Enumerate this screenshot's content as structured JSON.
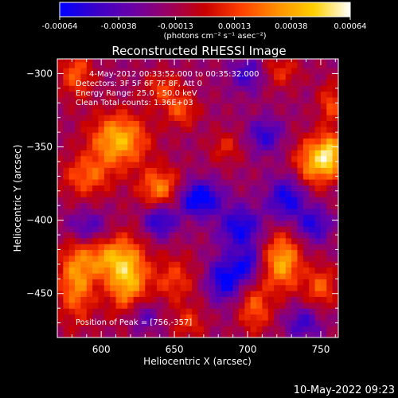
{
  "colorbar": {
    "ticks": [
      "-0.00064",
      "-0.00038",
      "-0.00013",
      "0.00013",
      "0.00038",
      "0.00064"
    ],
    "unit_label": "(photons cm⁻² s⁻¹ asec⁻²)",
    "range": [
      -0.00064,
      0.00064
    ],
    "colormap": [
      "#0000ff",
      "#3a00c8",
      "#6a00a8",
      "#9a0060",
      "#c80000",
      "#ff4000",
      "#ff9000",
      "#ffd000",
      "#ffffff"
    ]
  },
  "chart_data": {
    "type": "heatmap",
    "title": "Reconstructed RHESSI Image",
    "xlabel": "Heliocentric X (arcsec)",
    "ylabel": "Heliocentric Y (arcsec)",
    "xlim": [
      570,
      762
    ],
    "ylim": [
      -480,
      -290
    ],
    "xticks": [
      600,
      650,
      700,
      750
    ],
    "yticks": [
      -300,
      -350,
      -400,
      -450
    ],
    "annotations": [
      "4-May-2012 00:33:52.000 to 00:35:32.000",
      "Detectors: 3F 5F 6F 7F 8F, Att 0",
      "Energy Range: 25.0 - 50.0 keV",
      "Clean     Total counts: 1.36E+03"
    ],
    "peak_label": "Position of Peak = [756,-357]",
    "peak": [
      756,
      -357
    ],
    "hotspots": [
      {
        "x": 612,
        "y": -345,
        "v": 0.9,
        "sx": 14,
        "sy": 13
      },
      {
        "x": 590,
        "y": -370,
        "v": 0.55,
        "sx": 12,
        "sy": 10
      },
      {
        "x": 640,
        "y": -378,
        "v": 0.7,
        "sx": 10,
        "sy": 10
      },
      {
        "x": 583,
        "y": -300,
        "v": 0.55,
        "sx": 8,
        "sy": 12
      },
      {
        "x": 642,
        "y": -310,
        "v": 0.45,
        "sx": 9,
        "sy": 8
      },
      {
        "x": 655,
        "y": -325,
        "v": 0.5,
        "sx": 8,
        "sy": 8
      },
      {
        "x": 723,
        "y": -298,
        "v": 0.4,
        "sx": 9,
        "sy": 8
      },
      {
        "x": 745,
        "y": -360,
        "v": 0.8,
        "sx": 9,
        "sy": 12
      },
      {
        "x": 757,
        "y": -355,
        "v": 0.85,
        "sx": 6,
        "sy": 10
      },
      {
        "x": 757,
        "y": -320,
        "v": 0.5,
        "sx": 6,
        "sy": 10
      },
      {
        "x": 618,
        "y": -438,
        "v": 0.95,
        "sx": 10,
        "sy": 18
      },
      {
        "x": 583,
        "y": -440,
        "v": 0.75,
        "sx": 9,
        "sy": 20
      },
      {
        "x": 602,
        "y": -425,
        "v": 0.55,
        "sx": 10,
        "sy": 10
      },
      {
        "x": 650,
        "y": -440,
        "v": 0.45,
        "sx": 10,
        "sy": 12
      },
      {
        "x": 705,
        "y": -460,
        "v": 0.55,
        "sx": 8,
        "sy": 12
      },
      {
        "x": 724,
        "y": -428,
        "v": 0.85,
        "sx": 9,
        "sy": 14
      },
      {
        "x": 750,
        "y": -445,
        "v": 0.55,
        "sx": 8,
        "sy": 10
      },
      {
        "x": 685,
        "y": -350,
        "v": 0.35,
        "sx": 8,
        "sy": 8
      },
      {
        "x": 660,
        "y": -470,
        "v": 0.4,
        "sx": 8,
        "sy": 8
      }
    ],
    "coldspots": [
      {
        "x": 667,
        "y": -385,
        "v": -0.9,
        "sx": 10,
        "sy": 8
      },
      {
        "x": 640,
        "y": -400,
        "v": -0.65,
        "sx": 8,
        "sy": 8
      },
      {
        "x": 695,
        "y": -405,
        "v": -0.7,
        "sx": 10,
        "sy": 10
      },
      {
        "x": 727,
        "y": -385,
        "v": -0.7,
        "sx": 9,
        "sy": 10
      },
      {
        "x": 745,
        "y": -403,
        "v": -0.6,
        "sx": 8,
        "sy": 8
      },
      {
        "x": 685,
        "y": -440,
        "v": -0.8,
        "sx": 8,
        "sy": 10
      },
      {
        "x": 700,
        "y": -430,
        "v": -0.6,
        "sx": 6,
        "sy": 8
      },
      {
        "x": 712,
        "y": -342,
        "v": -0.55,
        "sx": 8,
        "sy": 8
      },
      {
        "x": 700,
        "y": -300,
        "v": -0.5,
        "sx": 8,
        "sy": 8
      },
      {
        "x": 590,
        "y": -405,
        "v": -0.5,
        "sx": 10,
        "sy": 8
      },
      {
        "x": 628,
        "y": -465,
        "v": -0.45,
        "sx": 8,
        "sy": 8
      },
      {
        "x": 738,
        "y": -470,
        "v": -0.5,
        "sx": 8,
        "sy": 8
      }
    ],
    "background_level": -0.25
  },
  "footer": {
    "timestamp": "10-May-2022 09:23"
  }
}
